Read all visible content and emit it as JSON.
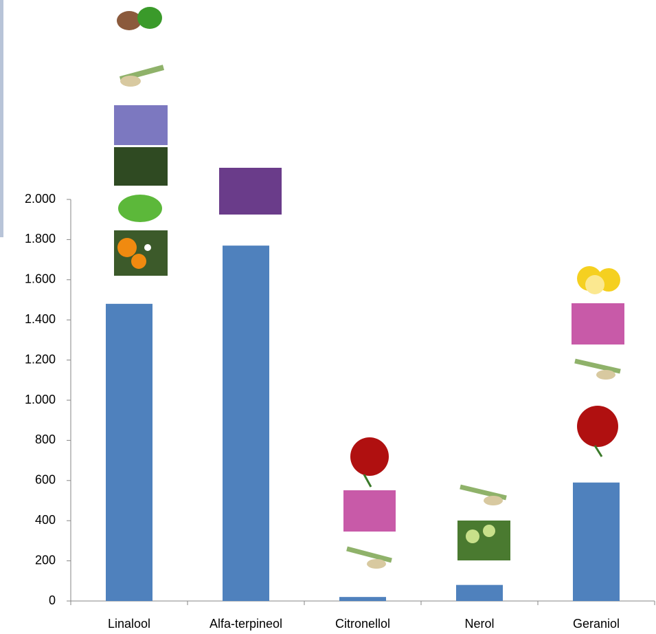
{
  "chart_data": {
    "type": "bar",
    "categories": [
      "Linalool",
      "Alfa-terpineol",
      "Citronellol",
      "Nerol",
      "Geraniol"
    ],
    "values": [
      1480,
      1770,
      20,
      80,
      590
    ],
    "color": "#4f81bd",
    "ylim": [
      0,
      2000
    ],
    "yticks": [
      0,
      200,
      400,
      600,
      800,
      {
        "value": 1000,
        "label": "1.000"
      },
      {
        "value": 1200,
        "label": "1.200"
      },
      {
        "value": 1400,
        "label": "1.400"
      },
      {
        "value": 1600,
        "label": "1.600"
      },
      {
        "value": 1800,
        "label": "1.800"
      },
      {
        "value": 2000,
        "label": "2.000"
      }
    ],
    "grid": false
  }
}
